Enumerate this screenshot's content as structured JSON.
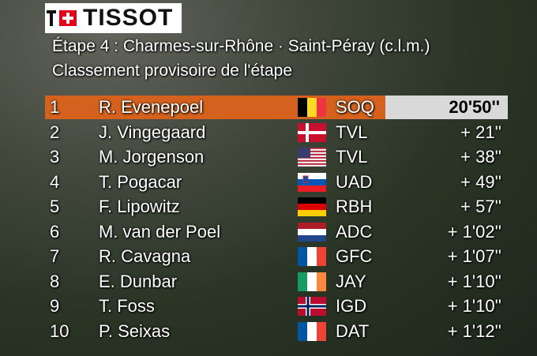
{
  "header": {
    "brand": "TISSOT",
    "title": "Étape 4 : Charmes-sur-Rhône ·  Saint-Péray (c.l.m.)",
    "subtitle": "Classement provisoire de l'étape"
  },
  "table": {
    "rows": [
      [
        "1",
        "R. Evenepoel",
        "SOQ",
        "20'50''"
      ],
      [
        "2",
        "J. Vingegaard",
        "TVL",
        "+ 21''"
      ],
      [
        "3",
        "M. Jorgenson",
        "TVL",
        "+ 38''"
      ],
      [
        "4",
        "T. Pogacar",
        "UAD",
        "+ 49''"
      ],
      [
        "5",
        "F. Lipowitz",
        "RBH",
        "+ 57''"
      ],
      [
        "6",
        "M. van der Poel",
        "ADC",
        "+ 1'02''"
      ],
      [
        "7",
        "R. Cavagna",
        "GFC",
        "+ 1'07''"
      ],
      [
        "8",
        "E. Dunbar",
        "JAY",
        "+ 1'10''"
      ],
      [
        "9",
        "T. Foss",
        "IGD",
        "+ 1'10''"
      ],
      [
        "10",
        "P. Seixas",
        "DAT",
        "+ 1'12''"
      ]
    ]
  }
}
